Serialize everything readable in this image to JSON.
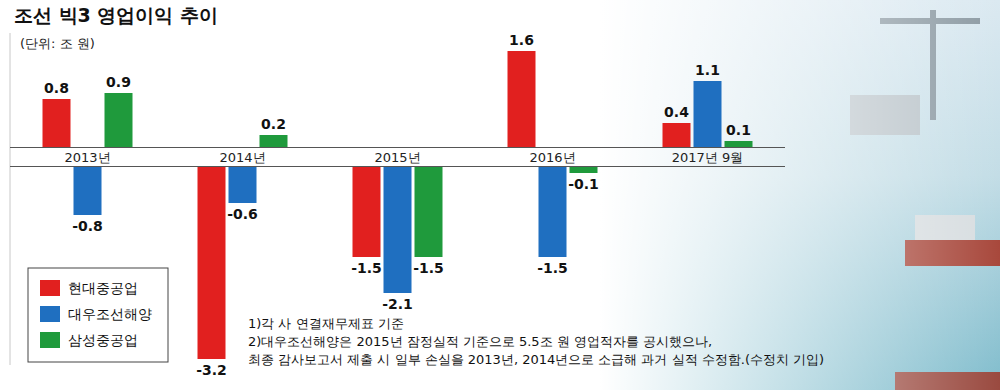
{
  "chart_data": {
    "type": "bar",
    "title": "조선 빅3 영업이익 추이",
    "subtitle": "(단위: 조 원)",
    "categories": [
      "2013년",
      "2014년",
      "2015년",
      "2016년",
      "2017년 9월"
    ],
    "series": [
      {
        "name": "현대중공업",
        "color": "#e1201f",
        "values": [
          0.8,
          -3.2,
          -1.5,
          1.6,
          0.4
        ]
      },
      {
        "name": "대우조선해양",
        "color": "#1f6fc0",
        "values": [
          -0.8,
          -0.6,
          -2.1,
          -1.5,
          1.1
        ]
      },
      {
        "name": "삼성중공업",
        "color": "#1f9a3c",
        "values": [
          0.9,
          0.2,
          -1.5,
          -0.1,
          0.1
        ]
      }
    ],
    "ylim": [
      -3.3,
      1.9
    ],
    "tick_labels": "x",
    "data_labels": true,
    "grid": false,
    "legend": "bottom-left",
    "annotations": [
      "1)각 사 연결재무제표 기준",
      "2)대우조선해양은 2015년 잠정실적 기준으로 5.5조 원 영업적자를 공시했으나,",
      "최종 감사보고서 제출 시 일부 손실을 2013년, 2014년으로 소급해 과거 실적 수정함.(수정치 기입)"
    ]
  }
}
